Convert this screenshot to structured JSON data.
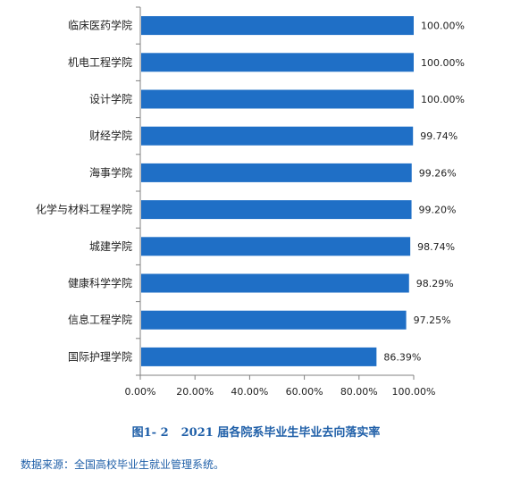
{
  "colors": {
    "bar": "#1F6FC6",
    "axis": "#808080",
    "text": "#222222",
    "caption": "#1F5FA8",
    "source": "#1F5FA8"
  },
  "chart_data": {
    "type": "bar",
    "orientation": "horizontal",
    "categories": [
      "临床医药学院",
      "机电工程学院",
      "设计学院",
      "财经学院",
      "海事学院",
      "化学与材料工程学院",
      "城建学院",
      "健康科学学院",
      "信息工程学院",
      "国际护理学院"
    ],
    "values": [
      100.0,
      100.0,
      100.0,
      99.74,
      99.26,
      99.2,
      98.74,
      98.29,
      97.25,
      86.39
    ],
    "value_labels": [
      "100.00%",
      "100.00%",
      "100.00%",
      "99.74%",
      "99.26%",
      "99.20%",
      "98.74%",
      "98.29%",
      "97.25%",
      "86.39%"
    ],
    "xlim": [
      0,
      100
    ],
    "x_ticks": [
      0,
      20,
      40,
      60,
      80,
      100
    ],
    "x_tick_labels": [
      "0.00%",
      "20.00%",
      "40.00%",
      "60.00%",
      "80.00%",
      "100.00%"
    ],
    "grid": false,
    "title": "",
    "xlabel": "",
    "ylabel": ""
  },
  "caption": {
    "figure_number": "图1- 2",
    "text": "2021 届各院系毕业生毕业去向落实率"
  },
  "source": "数据来源：全国高校毕业生就业管理系统。"
}
